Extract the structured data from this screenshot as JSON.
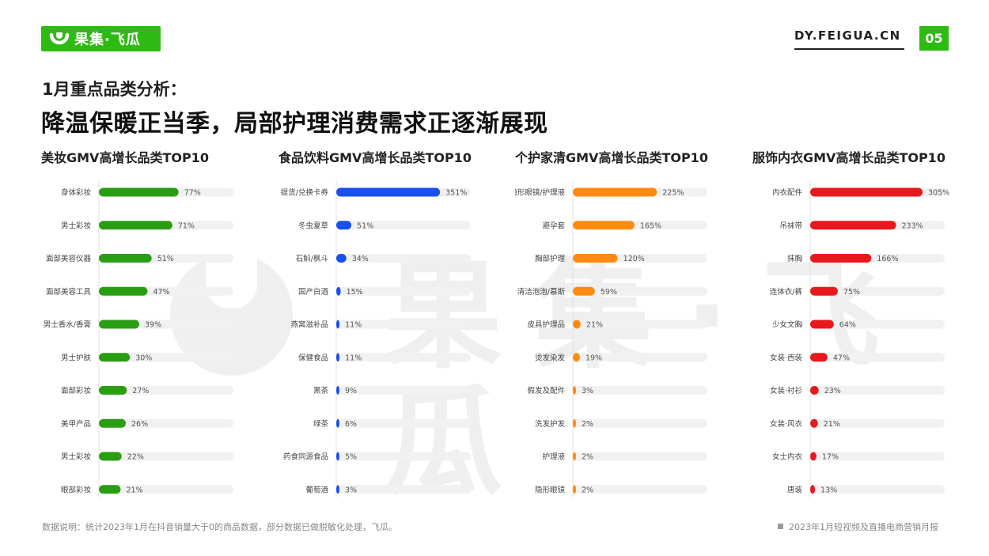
{
  "header": {
    "logo_text": "果集·飞瓜",
    "site": "DY.FEIGUA.CN",
    "page_number": "05"
  },
  "titles": {
    "subtitle": "1月重点品类分析：",
    "main": "降温保暖正当季，局部护理消费需求正逐渐展现"
  },
  "watermark_text": "果集·飞瓜",
  "footer": {
    "note": "数据说明：统计2023年1月在抖音销量大于0的商品数据，部分数据已做脱敏化处理，飞瓜。",
    "report": "2023年1月短视频及直播电商营销月报"
  },
  "colors": {
    "brand": "#2dbb13",
    "track": "#f1f1f1"
  },
  "chart_data": [
    {
      "type": "bar",
      "orientation": "horizontal",
      "title": "美妆GMV高增长品类TOP10",
      "color": "#2a9e12",
      "categories": [
        "身体彩妆",
        "男士彩妆",
        "面部美容仪器",
        "面部美容工具",
        "男士香水/香膏",
        "男士护肤",
        "面部彩妆",
        "美甲产品",
        "男士彩妆",
        "眼部彩妆"
      ],
      "values": [
        77,
        71,
        51,
        47,
        39,
        30,
        27,
        26,
        22,
        21
      ],
      "labels": [
        "77%",
        "71%",
        "51%",
        "47%",
        "39%",
        "30%",
        "27%",
        "26%",
        "22%",
        "21%"
      ],
      "xlim": [
        0,
        130
      ]
    },
    {
      "type": "bar",
      "orientation": "horizontal",
      "title": "食品饮料GMV高增长品类TOP10",
      "color": "#1a4ff0",
      "categories": [
        "提货/兑换卡券",
        "冬虫夏草",
        "石斛/枫斗",
        "国产白酒",
        "燕窝滋补品",
        "保健食品",
        "黑茶",
        "绿茶",
        "药食同源食品",
        "葡萄酒"
      ],
      "values": [
        351,
        51,
        34,
        15,
        11,
        11,
        9,
        6,
        5,
        3
      ],
      "labels": [
        "351%",
        "51%",
        "34%",
        "15%",
        "11%",
        "11%",
        "9%",
        "6%",
        "5%",
        "3%"
      ],
      "xlim": [
        0,
        455
      ]
    },
    {
      "type": "bar",
      "orientation": "horizontal",
      "title": "个护家清GMV高增长品类TOP10",
      "color": "#ff8a12",
      "categories": [
        "隐形眼镜/护理液",
        "避孕套",
        "胸部护理",
        "清洁泡泡/慕斯",
        "皮具护理品",
        "烫发染发",
        "假发及配件",
        "洗发护发",
        "护理液",
        "隐形眼镜"
      ],
      "values": [
        225,
        165,
        120,
        59,
        21,
        19,
        3,
        2,
        2,
        2
      ],
      "labels": [
        "225%",
        "165%",
        "120%",
        "59%",
        "21%",
        "19%",
        "3%",
        "2%",
        "2%",
        "2%"
      ],
      "xlim": [
        0,
        360
      ]
    },
    {
      "type": "bar",
      "orientation": "horizontal",
      "title": "服饰内衣GMV高增长品类TOP10",
      "color": "#e8191c",
      "categories": [
        "内衣配件",
        "吊袜带",
        "抹胸",
        "连体衣/裤",
        "少女文胸",
        "女装·西装",
        "女装·衬衫",
        "女装·风衣",
        "女士内衣",
        "唐装"
      ],
      "values": [
        305,
        233,
        166,
        75,
        64,
        47,
        23,
        21,
        17,
        13
      ],
      "labels": [
        "305%",
        "233%",
        "166%",
        "75%",
        "64%",
        "47%",
        "23%",
        "21%",
        "17%",
        "13%"
      ],
      "xlim": [
        0,
        365
      ]
    }
  ]
}
